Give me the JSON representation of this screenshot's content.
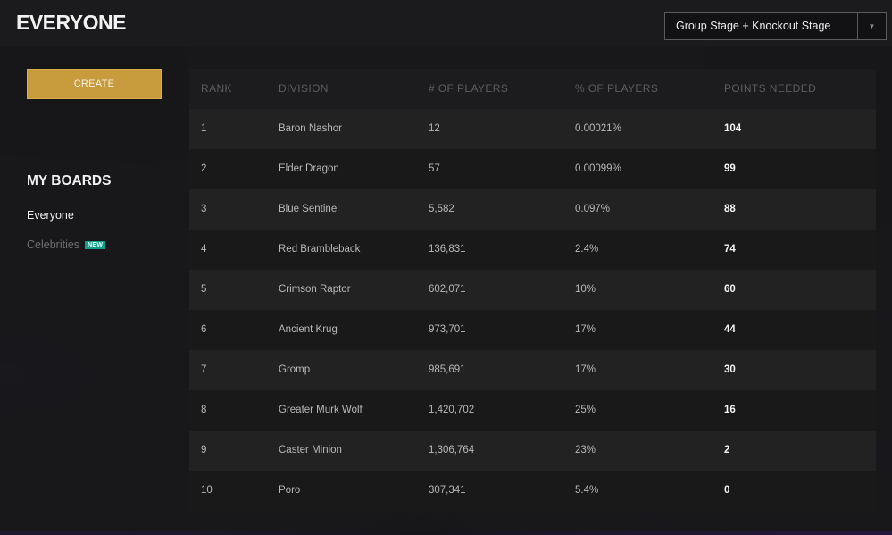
{
  "header": {
    "title": "EVERYONE",
    "stage_select": {
      "value": "Group Stage + Knockout Stage",
      "icon": "chevron-down-icon"
    }
  },
  "sidebar": {
    "create_label": "CREATE",
    "heading": "MY BOARDS",
    "boards": [
      {
        "label": "Everyone",
        "active": true
      },
      {
        "label": "Celebrities",
        "badge": "NEW"
      }
    ]
  },
  "table": {
    "columns": [
      "RANK",
      "DIVISION",
      "# OF PLAYERS",
      "% OF PLAYERS",
      "POINTS NEEDED"
    ],
    "rows": [
      {
        "rank": "1",
        "division": "Baron Nashor",
        "players": "12",
        "pct": "0.00021%",
        "points": "104"
      },
      {
        "rank": "2",
        "division": "Elder Dragon",
        "players": "57",
        "pct": "0.00099%",
        "points": "99"
      },
      {
        "rank": "3",
        "division": "Blue Sentinel",
        "players": "5,582",
        "pct": "0.097%",
        "points": "88"
      },
      {
        "rank": "4",
        "division": "Red Brambleback",
        "players": "136,831",
        "pct": "2.4%",
        "points": "74"
      },
      {
        "rank": "5",
        "division": "Crimson Raptor",
        "players": "602,071",
        "pct": "10%",
        "points": "60"
      },
      {
        "rank": "6",
        "division": "Ancient Krug",
        "players": "973,701",
        "pct": "17%",
        "points": "44"
      },
      {
        "rank": "7",
        "division": "Gromp",
        "players": "985,691",
        "pct": "17%",
        "points": "30"
      },
      {
        "rank": "8",
        "division": "Greater Murk Wolf",
        "players": "1,420,702",
        "pct": "25%",
        "points": "16"
      },
      {
        "rank": "9",
        "division": "Caster Minion",
        "players": "1,306,764",
        "pct": "23%",
        "points": "2"
      },
      {
        "rank": "10",
        "division": "Poro",
        "players": "307,341",
        "pct": "5.4%",
        "points": "0"
      }
    ]
  },
  "colors": {
    "accent": "#c89b3c",
    "badge": "#12a08a",
    "background": "#18181a"
  }
}
